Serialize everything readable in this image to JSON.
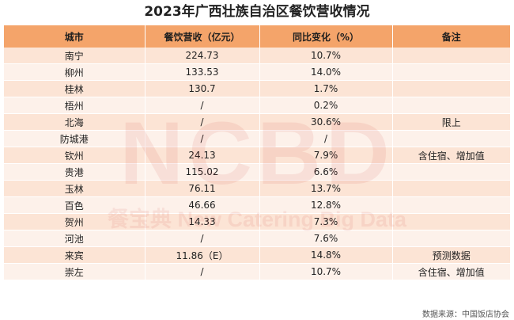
{
  "title": "2023年广西壮族自治区餐饮营收情况",
  "watermark": {
    "logo_text": "NCBD",
    "subtitle": "餐宝典 New Catering Big Data"
  },
  "table": {
    "headers": [
      "城市",
      "餐饮营收（亿元）",
      "同比变化（%）",
      "备注"
    ],
    "rows": [
      [
        "南宁",
        "224.73",
        "10.7%",
        ""
      ],
      [
        "柳州",
        "133.53",
        "14.0%",
        ""
      ],
      [
        "桂林",
        "130.7",
        "1.7%",
        ""
      ],
      [
        "梧州",
        "/",
        "0.2%",
        ""
      ],
      [
        "北海",
        "/",
        "30.6%",
        "限上"
      ],
      [
        "防城港",
        "/",
        "/",
        ""
      ],
      [
        "钦州",
        "24.13",
        "7.9%",
        "含住宿、增加值"
      ],
      [
        "贵港",
        "115.02",
        "6.6%",
        ""
      ],
      [
        "玉林",
        "76.11",
        "13.7%",
        ""
      ],
      [
        "百色",
        "46.66",
        "12.8%",
        ""
      ],
      [
        "贺州",
        "14.33",
        "7.3%",
        ""
      ],
      [
        "河池",
        "/",
        "7.6%",
        ""
      ],
      [
        "来宾",
        "11.86（E）",
        "14.8%",
        "预测数据"
      ],
      [
        "崇左",
        "/",
        "10.7%",
        "含住宿、增加值"
      ]
    ]
  },
  "source": "数据来源：中国饭店协会"
}
